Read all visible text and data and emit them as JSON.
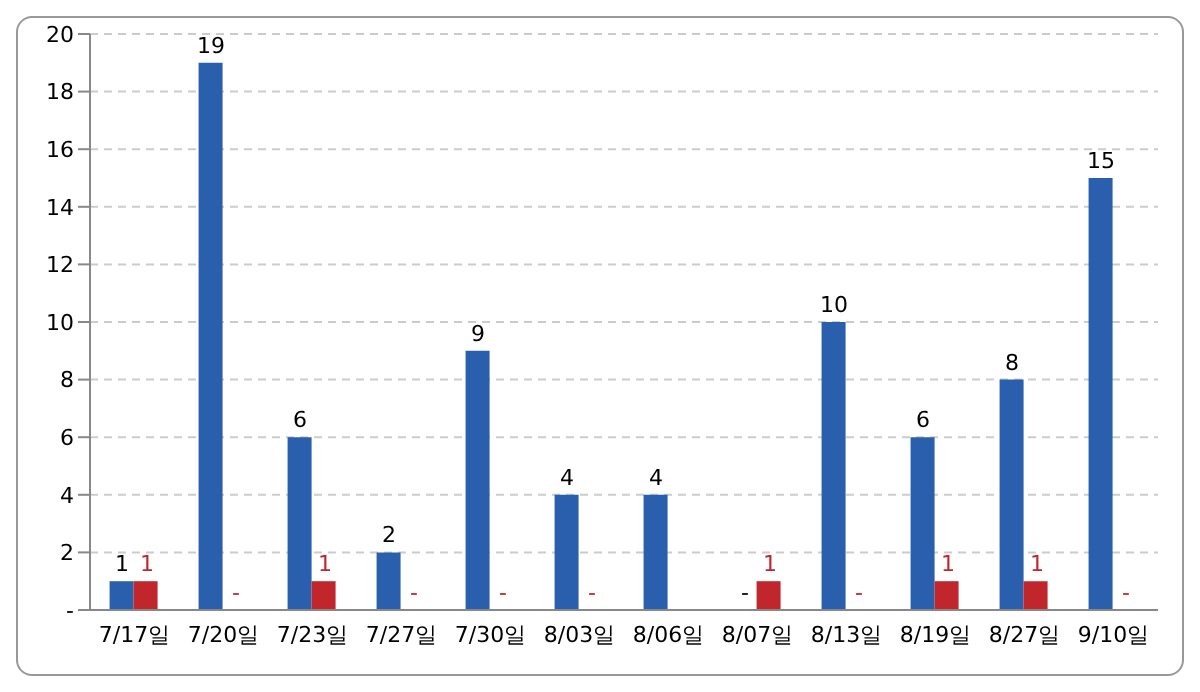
{
  "chart_data": {
    "type": "bar",
    "categories": [
      "7/17일",
      "7/20일",
      "7/23일",
      "7/27일",
      "7/30일",
      "8/03일",
      "8/06일",
      "8/07일",
      "8/13일",
      "8/19일",
      "8/27일",
      "9/10일"
    ],
    "series": [
      {
        "color": "#2a5fae",
        "values": [
          1,
          19,
          6,
          2,
          9,
          4,
          4,
          0,
          10,
          6,
          8,
          15
        ],
        "value_labels": [
          "1",
          "19",
          "6",
          "2",
          "9",
          "4",
          "4",
          "-",
          "10",
          "6",
          "8",
          "15"
        ]
      },
      {
        "color": "#c0262c",
        "values": [
          1,
          0,
          1,
          0,
          0,
          0,
          null,
          1,
          0,
          1,
          1,
          0
        ],
        "value_labels": [
          "1",
          "-",
          "1",
          "-",
          "-",
          "-",
          null,
          "1",
          "-",
          "1",
          "1",
          "-"
        ]
      }
    ],
    "ylim": [
      0,
      20
    ],
    "yticks": [
      {
        "value": 0,
        "label": "-"
      },
      2,
      4,
      6,
      8,
      10,
      12,
      14,
      16,
      18,
      20
    ],
    "grid": "y",
    "legend": false
  }
}
